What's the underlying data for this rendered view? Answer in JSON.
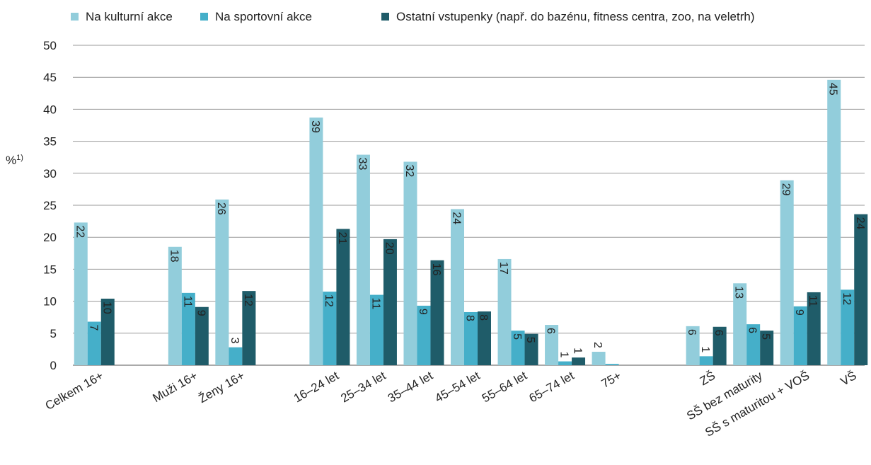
{
  "chart_data": {
    "type": "bar",
    "y_label": "%",
    "y_label_note": "1)",
    "categories": [
      "Celkem 16+",
      null,
      "Muži 16+",
      "Ženy 16+",
      null,
      "16–24 let",
      "25–34 let",
      "35–44 let",
      "45–54 let",
      "55–64 let",
      "65–74 let",
      "75+",
      null,
      "ZŠ",
      "SŠ bez maturity",
      "SŠ s maturitou + VOŠ",
      "VŠ"
    ],
    "series": [
      {
        "name": "Na kulturní akce",
        "color": "#92cddb",
        "values": [
          22.3,
          null,
          18.5,
          25.9,
          null,
          38.7,
          32.9,
          31.8,
          24.4,
          16.6,
          6.3,
          2.1,
          null,
          6.1,
          12.8,
          28.9,
          44.6
        ],
        "value_labels": [
          22,
          null,
          18,
          26,
          null,
          39,
          33,
          32,
          24,
          17,
          6,
          2,
          null,
          6,
          13,
          29,
          45
        ]
      },
      {
        "name": "Na sportovní akce",
        "color": "#45afc9",
        "values": [
          6.8,
          null,
          11.3,
          2.8,
          null,
          11.5,
          11.0,
          9.3,
          8.3,
          5.4,
          0.6,
          0.2,
          null,
          1.4,
          6.4,
          9.2,
          11.8
        ],
        "value_labels": [
          7,
          null,
          11,
          3,
          null,
          12,
          11,
          9,
          8,
          5,
          1,
          null,
          null,
          1,
          6,
          9,
          12
        ]
      },
      {
        "name": "Ostatní vstupenky (např. do bazénu, fitness centra, zoo, na veletrh)",
        "color": "#1f5c69",
        "values": [
          10.4,
          null,
          9.1,
          11.6,
          null,
          21.3,
          19.7,
          16.4,
          8.4,
          4.9,
          1.2,
          null,
          null,
          6.0,
          5.4,
          11.4,
          23.6
        ],
        "value_labels": [
          10,
          null,
          9,
          12,
          null,
          21,
          20,
          16,
          8,
          5,
          1,
          null,
          null,
          6,
          5,
          11,
          24
        ]
      }
    ],
    "ylim": [
      0,
      50
    ],
    "yticks": [
      0,
      5,
      10,
      15,
      20,
      25,
      30,
      35,
      40,
      45,
      50
    ],
    "grid": true,
    "legend": "top"
  }
}
